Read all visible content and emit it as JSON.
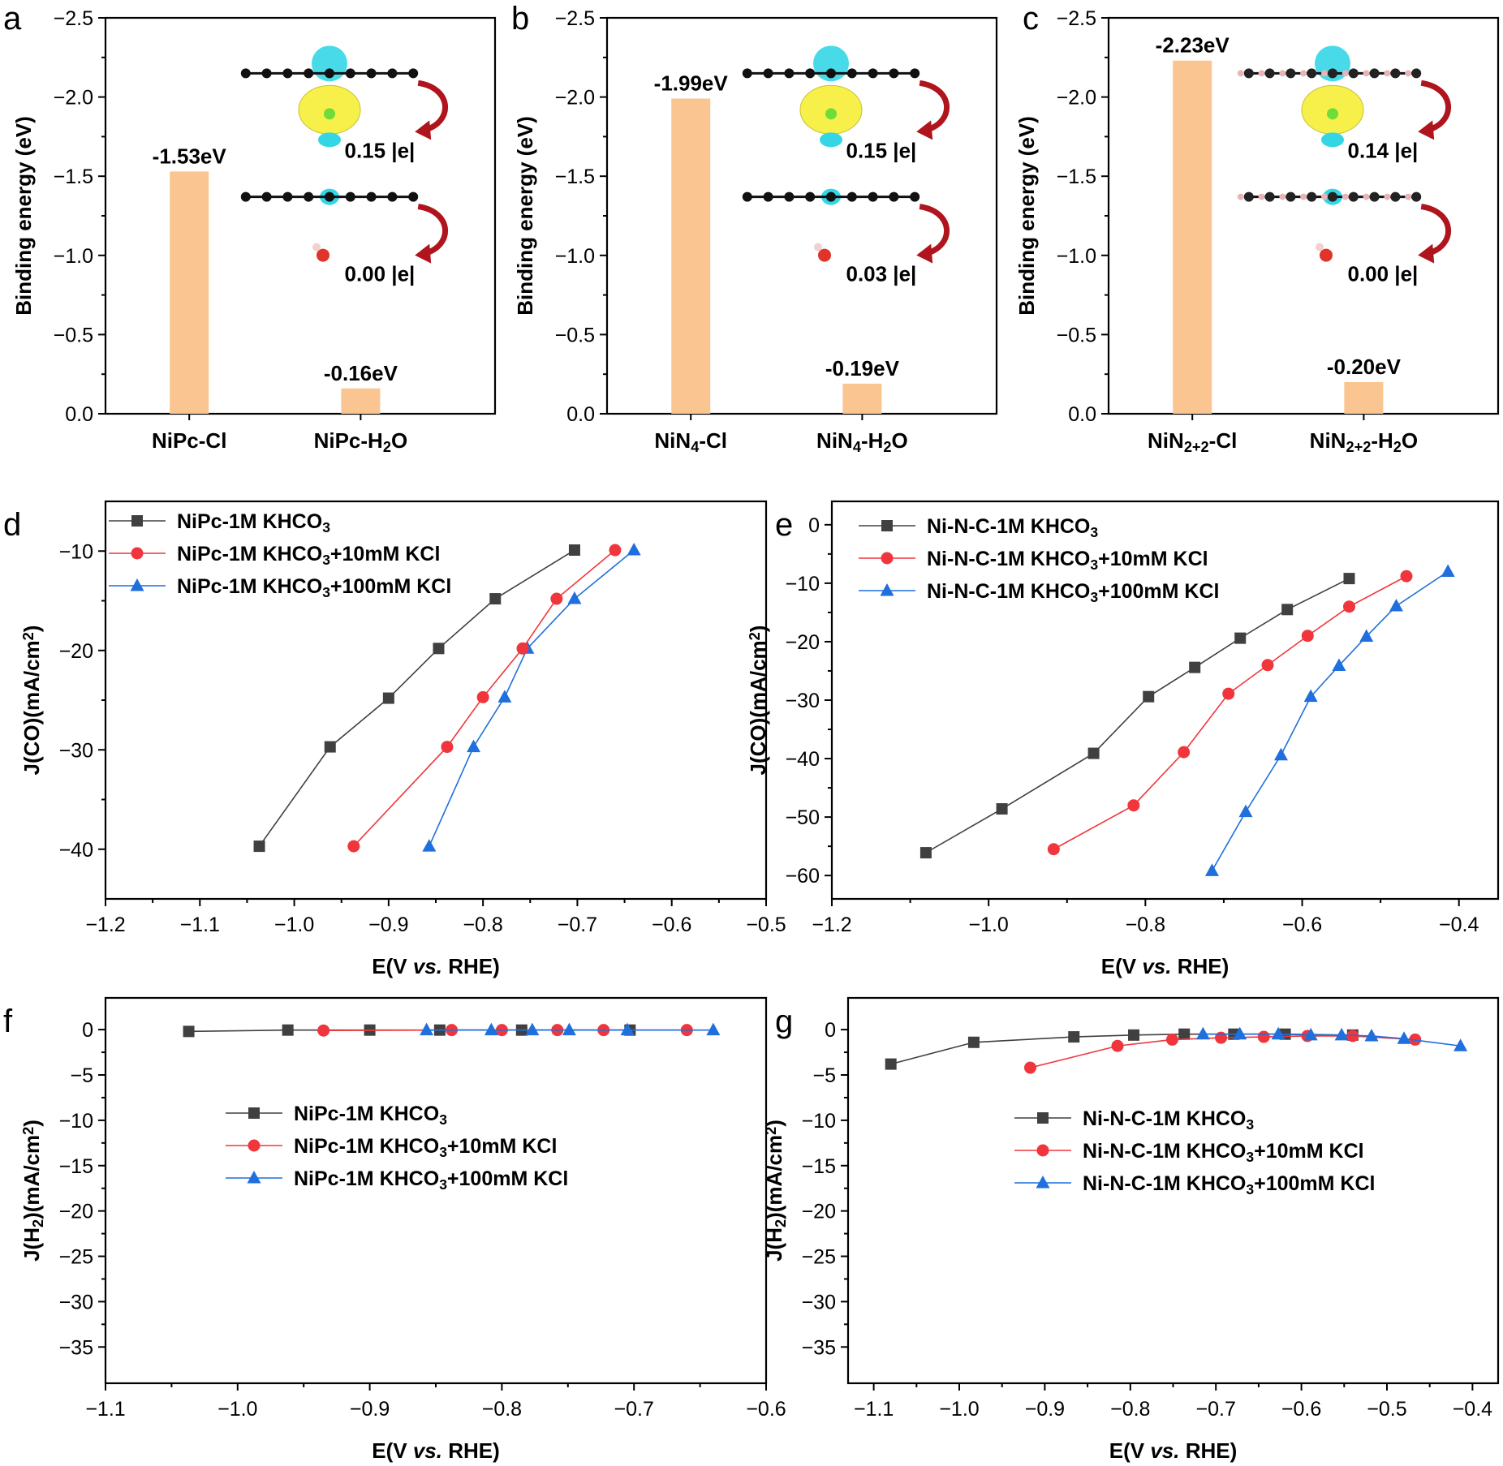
{
  "colors": {
    "bar": "#fac590",
    "series": [
      "#404040",
      "#f0363c",
      "#1f6fdc"
    ],
    "isosurface_yellow": "#f7f04a",
    "isosurface_cyan": "#34d6e6",
    "arrow": "#b0141c"
  },
  "chart_data": [
    {
      "panel": "a",
      "type": "bar",
      "ylabel": "Binding energy (eV)",
      "ylim": [
        0.0,
        -2.5
      ],
      "yticks": [
        "-2.5",
        "-2.0",
        "-1.5",
        "-1.0",
        "-0.5",
        "0.0"
      ],
      "categories": [
        "NiPc-Cl",
        "NiPc-H₂O"
      ],
      "values": [
        -1.53,
        -0.16
      ],
      "value_labels": [
        "-1.53eV",
        "-0.16eV"
      ],
      "charges": [
        "0.15 |e|",
        "0.00 |e|"
      ]
    },
    {
      "panel": "b",
      "type": "bar",
      "ylabel": "Binding energy (eV)",
      "ylim": [
        0.0,
        -2.5
      ],
      "yticks": [
        "-2.5",
        "-2.0",
        "-1.5",
        "-1.0",
        "-0.5",
        "0.0"
      ],
      "categories": [
        "NiN₄-Cl",
        "NiN₄-H₂O"
      ],
      "values": [
        -1.99,
        -0.19
      ],
      "value_labels": [
        "-1.99eV",
        "-0.19eV"
      ],
      "charges": [
        "0.15 |e|",
        "0.03 |e|"
      ]
    },
    {
      "panel": "c",
      "type": "bar",
      "ylabel": "Binding energy (eV)",
      "ylim": [
        0.0,
        -2.5
      ],
      "yticks": [
        "-2.5",
        "-2.0",
        "-1.5",
        "-1.0",
        "-0.5",
        "0.0"
      ],
      "categories": [
        "NiN₂₊₂-Cl",
        "NiN₂₊₂-H₂O"
      ],
      "values": [
        -2.23,
        -0.2
      ],
      "value_labels": [
        "-2.23eV",
        "-0.20eV"
      ],
      "charges": [
        "0.14 |e|",
        "0.00 |e|"
      ]
    },
    {
      "panel": "d",
      "type": "line",
      "xlabel": "E(V vs. RHE)",
      "ylabel": "J(CO)(mA/cm²)",
      "xlim": [
        -1.2,
        -0.5
      ],
      "ylim": [
        -45,
        -5
      ],
      "xticks": [
        "-1.2",
        "-1.1",
        "-1.0",
        "-0.9",
        "-0.8",
        "-0.7",
        "-0.6",
        "-0.5"
      ],
      "yticks": [
        "-10",
        "-20",
        "-30",
        "-40"
      ],
      "series": [
        {
          "name": "NiPc-1M KHCO₃+100mM KCl",
          "x": [
            -0.857,
            -0.81,
            -0.777,
            -0.753,
            -0.703,
            -0.64
          ],
          "y": [
            -39.7,
            -29.7,
            -24.7,
            -19.8,
            -14.8,
            -9.9
          ]
        },
        {
          "name": "NiPc-1M KHCO₃+10mM KCl",
          "x": [
            -0.937,
            -0.838,
            -0.8,
            -0.758,
            -0.722,
            -0.66
          ],
          "y": [
            -39.7,
            -29.7,
            -24.7,
            -19.8,
            -14.8,
            -9.9
          ]
        },
        {
          "name": "NiPc-1M KHCO₃",
          "x": [
            -1.037,
            -0.962,
            -0.9,
            -0.847,
            -0.787,
            -0.703
          ],
          "y": [
            -39.7,
            -29.7,
            -24.8,
            -19.8,
            -14.8,
            -9.9
          ]
        }
      ]
    },
    {
      "panel": "e",
      "type": "line",
      "xlabel": "E(V vs. RHE)",
      "ylabel": "J(CO)(mA/cm²)",
      "xlim": [
        -1.2,
        -0.35
      ],
      "ylim": [
        -64,
        4
      ],
      "xticks": [
        "-1.2",
        "-1.0",
        "-0.8",
        "-0.6",
        "-0.4"
      ],
      "yticks": [
        "0",
        "-10",
        "-20",
        "-30",
        "-40",
        "-50",
        "-60"
      ],
      "series": [
        {
          "name": "Ni-N-C-1M KHCO₃+100mM KCl",
          "x": [
            -0.715,
            -0.672,
            -0.627,
            -0.589,
            -0.553,
            -0.518,
            -0.48,
            -0.414
          ],
          "y": [
            -59.2,
            -49.1,
            -39.4,
            -29.4,
            -24.1,
            -19.1,
            -13.9,
            -8.0
          ]
        },
        {
          "name": "Ni-N-C-1M KHCO₃+10mM KCl",
          "x": [
            -0.917,
            -0.815,
            -0.751,
            -0.694,
            -0.644,
            -0.593,
            -0.54,
            -0.467
          ],
          "y": [
            -55.5,
            -48.0,
            -38.9,
            -28.9,
            -24.0,
            -19.0,
            -14.0,
            -8.8
          ]
        },
        {
          "name": "Ni-N-C-1M KHCO₃",
          "x": [
            -1.08,
            -0.983,
            -0.866,
            -0.796,
            -0.737,
            -0.679,
            -0.619,
            -0.54
          ],
          "y": [
            -56.1,
            -48.6,
            -39.1,
            -29.4,
            -24.4,
            -19.4,
            -14.5,
            -9.2
          ]
        }
      ]
    },
    {
      "panel": "f",
      "type": "line",
      "xlabel": "E(V vs. RHE)",
      "ylabel": "J(H₂)(mA/cm²)",
      "xlim": [
        -1.1,
        -0.6
      ],
      "ylim": [
        -39,
        3.5
      ],
      "xticks": [
        "-1.1",
        "-1.0",
        "-0.9",
        "-0.8",
        "-0.7",
        "-0.6"
      ],
      "yticks": [
        "0",
        "-5",
        "-10",
        "-15",
        "-20",
        "-25",
        "-30",
        "-35"
      ],
      "series": [
        {
          "name": "NiPc-1M KHCO₃",
          "x": [
            -1.037,
            -0.962,
            -0.9,
            -0.847,
            -0.785,
            -0.703
          ],
          "y": [
            -0.2,
            -0.05,
            -0.05,
            -0.05,
            -0.05,
            -0.05
          ]
        },
        {
          "name": "NiPc-1M KHCO₃+10mM KCl",
          "x": [
            -0.935,
            -0.838,
            -0.8,
            -0.758,
            -0.723,
            -0.66
          ],
          "y": [
            -0.1,
            -0.05,
            -0.05,
            -0.05,
            -0.05,
            -0.05
          ]
        },
        {
          "name": "NiPc-1M KHCO₃+100mM KCl",
          "x": [
            -0.857,
            -0.808,
            -0.777,
            -0.749,
            -0.705,
            -0.64
          ],
          "y": [
            -0.05,
            -0.05,
            -0.05,
            -0.05,
            -0.05,
            -0.05
          ]
        }
      ]
    },
    {
      "panel": "g",
      "type": "line",
      "xlabel": "E(V vs. RHE)",
      "ylabel": "J(H₂)(mA/cm²)",
      "xlim": [
        -1.13,
        -0.37
      ],
      "ylim": [
        -39,
        3.5
      ],
      "xticks": [
        "-1.1",
        "-1.0",
        "-0.9",
        "-0.8",
        "-0.7",
        "-0.6",
        "-0.5",
        "-0.4"
      ],
      "yticks": [
        "0",
        "-5",
        "-10",
        "-15",
        "-20",
        "-25",
        "-30",
        "-35"
      ],
      "series": [
        {
          "name": "Ni-N-C-1M KHCO₃",
          "x": [
            -1.08,
            -0.983,
            -0.866,
            -0.796,
            -0.737,
            -0.679,
            -0.619,
            -0.54
          ],
          "y": [
            -3.8,
            -1.4,
            -0.8,
            -0.6,
            -0.5,
            -0.5,
            -0.5,
            -0.6
          ]
        },
        {
          "name": "Ni-N-C-1M KHCO₃+10mM KCl",
          "x": [
            -0.917,
            -0.815,
            -0.751,
            -0.694,
            -0.644,
            -0.593,
            -0.54,
            -0.467
          ],
          "y": [
            -4.2,
            -1.8,
            -1.1,
            -0.9,
            -0.8,
            -0.7,
            -0.7,
            -1.1
          ]
        },
        {
          "name": "Ni-N-C-1M KHCO₃+100mM KCl",
          "x": [
            -0.715,
            -0.672,
            -0.627,
            -0.589,
            -0.553,
            -0.518,
            -0.48,
            -0.414
          ],
          "y": [
            -0.5,
            -0.5,
            -0.5,
            -0.6,
            -0.6,
            -0.7,
            -1.0,
            -1.8
          ]
        }
      ]
    }
  ]
}
